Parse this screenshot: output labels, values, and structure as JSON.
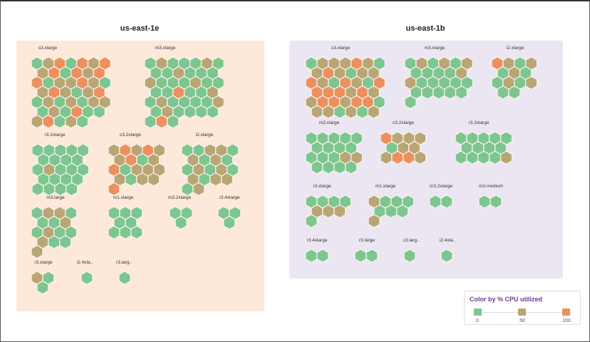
{
  "chart_data": {
    "type": "hex-tile-grid",
    "title": "",
    "zones": [
      {
        "name": "us-east-1e",
        "bg": "#fde8d9",
        "groups": [
          {
            "label": "c3.xlarge",
            "cols": 7,
            "cpu": [
              10,
              50,
              90,
              10,
              90,
              50,
              90,
              50,
              90,
              10,
              90,
              50,
              90,
              90,
              10,
              50,
              50,
              90,
              50,
              10,
              50,
              90,
              50,
              10,
              50,
              90,
              10,
              50,
              10,
              50,
              10,
              50,
              50,
              10,
              50,
              10,
              90,
              10,
              10,
              50,
              90,
              10,
              50,
              10
            ]
          },
          {
            "label": "m3.xlarge",
            "cols": 7,
            "cpu": [
              10,
              50,
              10,
              10,
              10,
              50,
              10,
              10,
              10,
              50,
              10,
              10,
              10,
              50,
              10,
              10,
              10,
              50,
              10,
              10,
              10,
              10,
              90,
              10,
              10,
              50,
              10,
              50,
              10,
              10,
              10,
              10,
              50,
              10,
              50,
              10,
              10,
              10,
              10,
              10,
              90,
              10
            ]
          },
          {
            "label": "r3.2xlarge",
            "cols": 5,
            "cpu": [
              10,
              10,
              10,
              10,
              10,
              10,
              10,
              10,
              10,
              10,
              50,
              10,
              10,
              10,
              10,
              10,
              10,
              10,
              10,
              10,
              10,
              10
            ]
          },
          {
            "label": "c3.2xlarge",
            "cols": 5,
            "cpu": [
              50,
              90,
              50,
              90,
              50,
              50,
              90,
              10,
              50,
              90,
              10,
              50,
              50,
              50,
              50,
              10,
              50,
              50,
              90
            ]
          },
          {
            "label": "i2.xlarge",
            "cols": 5,
            "cpu": [
              10,
              10,
              50,
              50,
              10,
              50,
              10,
              50,
              10,
              10,
              50,
              10,
              50,
              10,
              50,
              10,
              50,
              50,
              10,
              50
            ]
          },
          {
            "label": "m3.large",
            "cols": 4,
            "cpu": [
              10,
              50,
              50,
              10,
              10,
              10,
              50,
              10,
              50,
              10,
              10,
              50,
              10,
              10,
              50
            ]
          },
          {
            "label": "m1.xlarge",
            "cols": 3,
            "cpu": [
              10,
              10,
              10,
              10,
              10,
              10,
              10,
              10
            ]
          },
          {
            "label": "m3.2xlarge",
            "cols": 2,
            "cpu": [
              10,
              10,
              10
            ]
          },
          {
            "label": "r3.4xlarge",
            "cols": 2,
            "cpu": [
              10,
              10,
              10
            ]
          },
          {
            "label": "r3.xlarge",
            "cols": 2,
            "cpu": [
              50,
              10,
              10
            ]
          },
          {
            "label": "i2.4xla..",
            "cols": 1,
            "cpu": [
              10
            ]
          },
          {
            "label": "r3.larg..",
            "cols": 1,
            "cpu": [
              10
            ]
          }
        ]
      },
      {
        "name": "us-east-1b",
        "bg": "#ece6f3",
        "groups": [
          {
            "label": "c3.xlarge",
            "cols": 7,
            "cpu": [
              10,
              50,
              50,
              50,
              90,
              50,
              10,
              50,
              90,
              50,
              10,
              50,
              50,
              90,
              50,
              10,
              90,
              50,
              10,
              90,
              90,
              90,
              90,
              50,
              90,
              50,
              50,
              90,
              90,
              50,
              90,
              90,
              10,
              50,
              50,
              10,
              50,
              10,
              50
            ]
          },
          {
            "label": "m3.xlarge",
            "cols": 6,
            "cpu": [
              10,
              50,
              10,
              50,
              10,
              50,
              10,
              10,
              10,
              10,
              50,
              50,
              10,
              10,
              10,
              10,
              10,
              10,
              10,
              10,
              10,
              10,
              10
            ]
          },
          {
            "label": "i2.xlarge",
            "cols": 4,
            "cpu": [
              90,
              50,
              10,
              50,
              10,
              50,
              10,
              10,
              50,
              10,
              50,
              10,
              10
            ]
          },
          {
            "label": "m3.xlarge",
            "cols": 5,
            "cpu": [
              10,
              10,
              10,
              10,
              10,
              10,
              10,
              10,
              10,
              10,
              10,
              10,
              50,
              50,
              10,
              10,
              10,
              10
            ]
          },
          {
            "label": "c3.2xlarge",
            "cols": 4,
            "cpu": [
              90,
              50,
              50,
              50,
              10,
              50,
              50,
              50,
              90,
              90,
              50
            ]
          },
          {
            "label": "r3.2xlarge",
            "cols": 5,
            "cpu": [
              10,
              10,
              10,
              10,
              10,
              10,
              10,
              10,
              10,
              10,
              10,
              10,
              10,
              50
            ]
          },
          {
            "label": "r3.xlarge",
            "cols": 4,
            "cpu": [
              10,
              10,
              10,
              10,
              50,
              50,
              50,
              10
            ]
          },
          {
            "label": "m1.xlarge",
            "cols": 4,
            "cpu": [
              50,
              10,
              10,
              10,
              10,
              10,
              10,
              50
            ]
          },
          {
            "label": "m3.2xlarge",
            "cols": 2,
            "cpu": [
              10,
              10
            ]
          },
          {
            "label": "m3.medium",
            "cols": 2,
            "cpu": [
              10,
              10
            ]
          },
          {
            "label": "r3.4xlarge",
            "cols": 2,
            "cpu": [
              10,
              10
            ]
          },
          {
            "label": "r3.large",
            "cols": 2,
            "cpu": [
              10,
              10
            ]
          },
          {
            "label": "c3.larg..",
            "cols": 1,
            "cpu": [
              10
            ]
          },
          {
            "label": "i2.4xla..",
            "cols": 1,
            "cpu": [
              10
            ]
          }
        ]
      }
    ],
    "legend": {
      "title": "Color by % CPU utilized",
      "stops": [
        {
          "value": "0",
          "color": "#7dc68f"
        },
        {
          "value": "50",
          "color": "#b9a674"
        },
        {
          "value": "100",
          "color": "#ee8f5e"
        }
      ]
    }
  }
}
